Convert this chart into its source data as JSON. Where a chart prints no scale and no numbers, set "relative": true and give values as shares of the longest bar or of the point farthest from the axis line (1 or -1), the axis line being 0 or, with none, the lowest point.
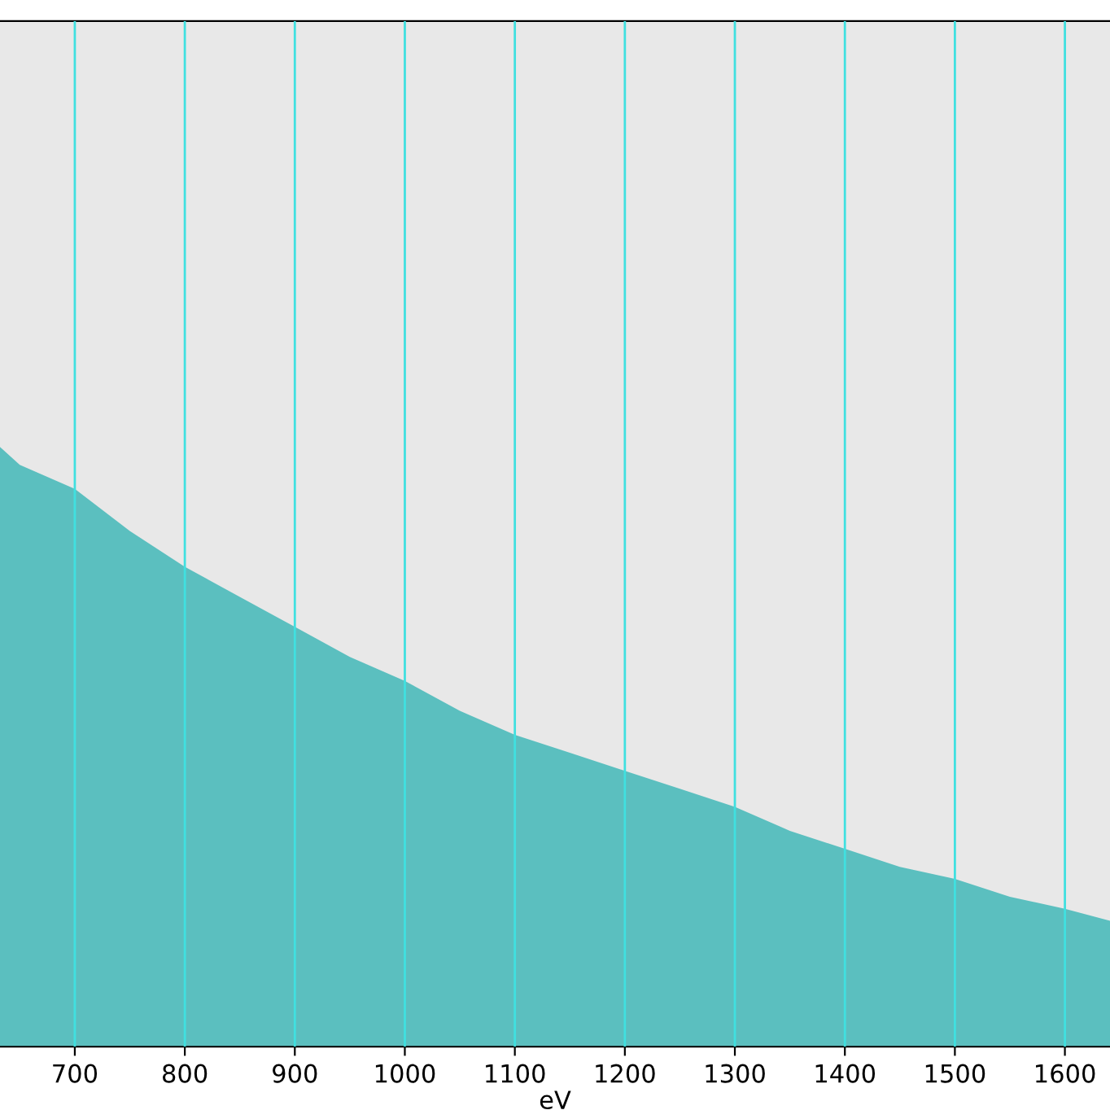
{
  "chart_data": {
    "type": "area",
    "xlabel": "eV",
    "relative": true,
    "grid": "x",
    "xlim": [
      632,
      1641
    ],
    "xticks": [
      700,
      800,
      900,
      1000,
      1100,
      1200,
      1300,
      1400,
      1500,
      1600
    ],
    "x": [
      632,
      650,
      700,
      750,
      800,
      850,
      900,
      950,
      1000,
      1050,
      1100,
      1150,
      1200,
      1250,
      1300,
      1350,
      1400,
      1450,
      1500,
      1550,
      1600,
      1641
    ],
    "series": [
      {
        "color": "#5bbfbf",
        "values": [
          1,
          0.97,
          0.93,
          0.86,
          0.8,
          0.75,
          0.7,
          0.65,
          0.61,
          0.56,
          0.52,
          0.49,
          0.46,
          0.43,
          0.4,
          0.36,
          0.33,
          0.3,
          0.28,
          0.25,
          0.23,
          0.21
        ]
      }
    ]
  }
}
